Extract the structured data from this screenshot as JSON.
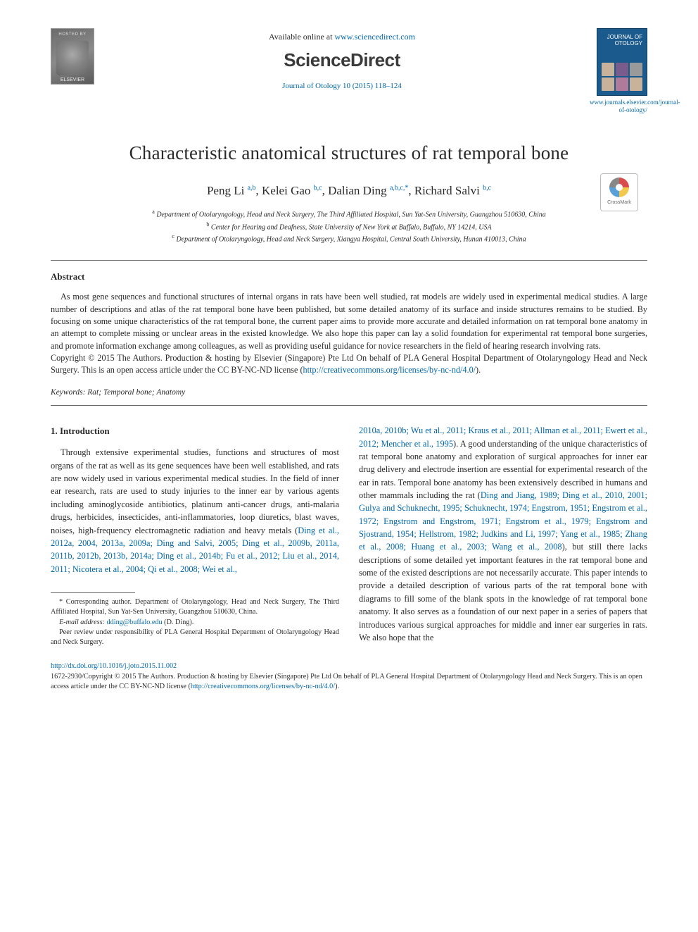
{
  "header": {
    "hosted_by": "HOSTED BY",
    "publisher": "ELSEVIER",
    "available_prefix": "Available online at ",
    "available_url": "www.sciencedirect.com",
    "sd_logo": "ScienceDirect",
    "journal_ref": "Journal of Otology 10 (2015) 118–124",
    "cover_title": "JOURNAL OF OTOLOGY",
    "journal_url": "www.journals.elsevier.com/journal-of-otology/"
  },
  "title": "Characteristic anatomical structures of rat temporal bone",
  "authors": [
    {
      "name": "Peng Li",
      "marks": "a,b"
    },
    {
      "name": "Kelei Gao",
      "marks": "b,c"
    },
    {
      "name": "Dalian Ding",
      "marks": "a,b,c,*"
    },
    {
      "name": "Richard Salvi",
      "marks": "b,c"
    }
  ],
  "affiliations": {
    "a": "Department of Otolaryngology, Head and Neck Surgery, The Third Affiliated Hospital, Sun Yat-Sen University, Guangzhou 510630, China",
    "b": "Center for Hearing and Deafness, State University of New York at Buffalo, Buffalo, NY 14214, USA",
    "c": "Department of Otolaryngology, Head and Neck Surgery, Xiangya Hospital, Central South University, Hunan 410013, China"
  },
  "abstract": {
    "heading": "Abstract",
    "body": "As most gene sequences and functional structures of internal organs in rats have been well studied, rat models are widely used in experimental medical studies. A large number of descriptions and atlas of the rat temporal bone have been published, but some detailed anatomy of its surface and inside structures remains to be studied. By focusing on some unique characteristics of the rat temporal bone, the current paper aims to provide more accurate and detailed information on rat temporal bone anatomy in an attempt to complete missing or unclear areas in the existed knowledge. We also hope this paper can lay a solid foundation for experimental rat temporal bone surgeries, and promote information exchange among colleagues, as well as providing useful guidance for novice researchers in the field of hearing research involving rats.",
    "copyright_prefix": "Copyright © 2015 The Authors. Production & hosting by Elsevier (Singapore) Pte Ltd On behalf of PLA General Hospital Department of Otolaryngology Head and Neck Surgery. This is an open access article under the CC BY-NC-ND license (",
    "license_url": "http://creativecommons.org/licenses/by-nc-nd/4.0/",
    "copyright_suffix": ")."
  },
  "keywords": {
    "label": "Keywords:",
    "text": "Rat; Temporal bone; Anatomy"
  },
  "section1": {
    "heading": "1. Introduction",
    "col1_intro": "Through extensive experimental studies, functions and structures of most organs of the rat as well as its gene sequences have been well established, and rats are now widely used in various experimental medical studies. In the field of inner ear research, rats are used to study injuries to the inner ear by various agents including aminoglycoside antibiotics, platinum anti-cancer drugs, anti-malaria drugs, herbicides, insecticides, anti-inflammatories, loop diuretics, blast waves, noises, high-frequency electromagnetic radiation and heavy metals (",
    "col1_refs": "Ding et al., 2012a, 2004, 2013a, 2009a; Ding and Salvi, 2005; Ding et al., 2009b, 2011a, 2011b, 2012b, 2013b, 2014a; Ding et al., 2014b; Fu et al., 2012; Liu et al., 2014, 2011; Nicotera et al., 2004; Qi et al., 2008; Wei et al.,",
    "col2_refs": "2010a, 2010b; Wu et al., 2011; Kraus et al., 2011; Allman et al., 2011; Ewert et al., 2012; Mencher et al., 1995",
    "col2_after_refs": "). A good understanding of the unique characteristics of rat temporal bone anatomy and exploration of surgical approaches for inner ear drug delivery and electrode insertion are essential for experimental research of the ear in rats. Temporal bone anatomy has been extensively described in humans and other mammals including the rat (",
    "col2_refs2": "Ding and Jiang, 1989; Ding et al., 2010, 2001; Gulya and Schuknecht, 1995; Schuknecht, 1974; Engstrom, 1951; Engstrom et al., 1972; Engstrom and Engstrom, 1971; Engstrom et al., 1979; Engstrom and Sjostrand, 1954; Hellstrom, 1982; Judkins and Li, 1997; Yang et al., 1985; Zhang et al., 2008; Huang et al., 2003; Wang et al., 2008",
    "col2_tail": "), but still there lacks descriptions of some detailed yet important features in the rat temporal bone and some of the existed descriptions are not necessarily accurate. This paper intends to provide a detailed description of various parts of the rat temporal bone with diagrams to fill some of the blank spots in the knowledge of rat temporal bone anatomy. It also serves as a foundation of our next paper in a series of papers that introduces various surgical approaches for middle and inner ear surgeries in rats. We also hope that the"
  },
  "footnotes": {
    "corr": "* Corresponding author. Department of Otolaryngology, Head and Neck Surgery, The Third Affiliated Hospital, Sun Yat-Sen University, Guangzhou 510630, China.",
    "email_label": "E-mail address:",
    "email": "dding@buffalo.edu",
    "email_who": "(D. Ding).",
    "peer": "Peer review under responsibility of PLA General Hospital Department of Otolaryngology Head and Neck Surgery."
  },
  "bottom": {
    "doi": "http://dx.doi.org/10.1016/j.joto.2015.11.002",
    "issn_line_prefix": "1672-2930/Copyright © 2015 The Authors. Production & hosting by Elsevier (Singapore) Pte Ltd On behalf of PLA General Hospital Department of Otolaryngology Head and Neck Surgery. This is an open access article under the CC BY-NC-ND license (",
    "license_url": "http://creativecommons.org/licenses/by-nc-nd/4.0/",
    "suffix": ")."
  },
  "crossmark": "CrossMark",
  "colors": {
    "link": "#0066aa",
    "text": "#2a2a2a",
    "rule": "#666666",
    "cover_bg": "#1b5a8c"
  },
  "typography": {
    "body_family": "Times New Roman",
    "title_pt": 27,
    "authors_pt": 17,
    "abstract_pt": 12.2,
    "body_pt": 12.4,
    "footnote_pt": 10.2
  }
}
